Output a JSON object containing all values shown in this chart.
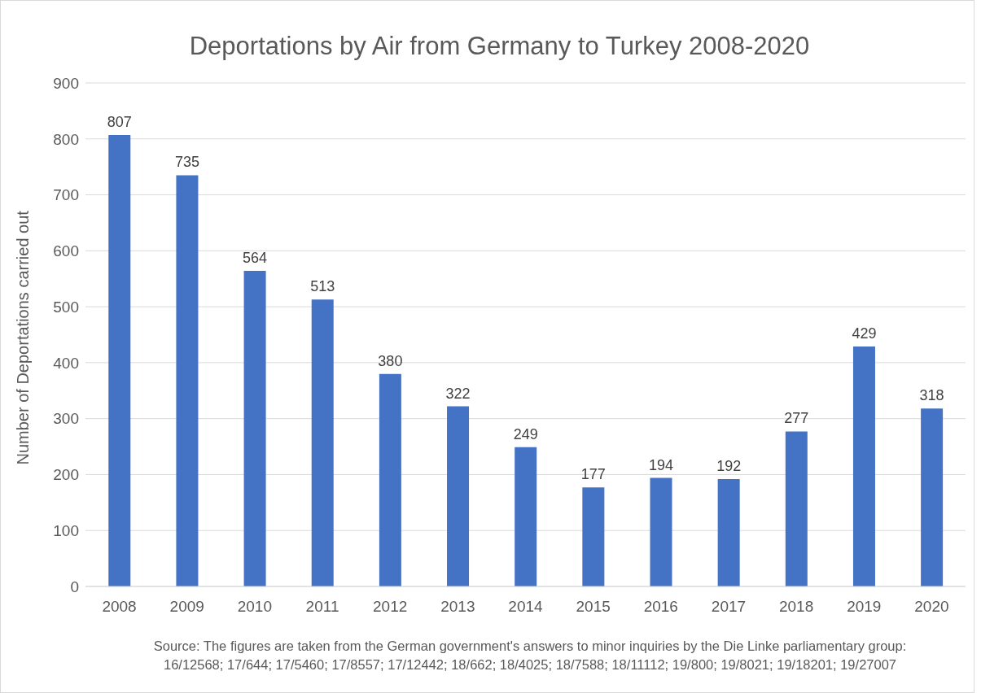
{
  "chart_data": {
    "type": "bar",
    "title": "Deportations by Air from Germany to Turkey 2008-2020",
    "ylabel": "Number of Deportations carried out",
    "categories": [
      "2008",
      "2009",
      "2010",
      "2011",
      "2012",
      "2013",
      "2014",
      "2015",
      "2016",
      "2017",
      "2018",
      "2019",
      "2020"
    ],
    "values": [
      807,
      735,
      564,
      513,
      380,
      322,
      249,
      177,
      194,
      192,
      277,
      429,
      318
    ],
    "color": "#4472c4",
    "ylim": [
      0,
      900
    ],
    "yticks": [
      0,
      100,
      200,
      300,
      400,
      500,
      600,
      700,
      800,
      900
    ],
    "grid": "y",
    "data_labels": true,
    "annotations": [
      "Source: The figures are taken from the German government's answers to minor inquiries by the Die Linke parliamentary group: 16/12568; 17/644; 17/5460; 17/8557; 17/12442; 18/662; 18/4025; 18/7588; 18/11112; 19/800; 19/8021; 19/18201; 19/27007"
    ]
  }
}
